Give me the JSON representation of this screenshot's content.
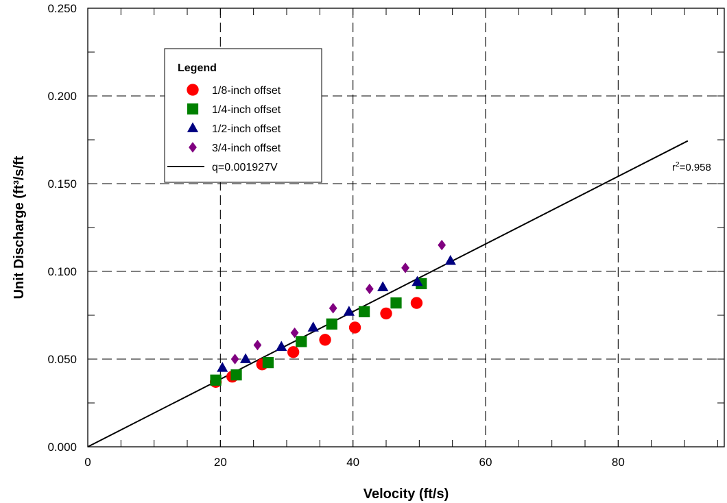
{
  "chart_data": {
    "type": "scatter",
    "xlabel": "Velocity (ft/s)",
    "ylabel": "Unit Discharge (ft³/s/ft",
    "xlim": [
      0,
      96
    ],
    "ylim": [
      0,
      0.25
    ],
    "x_ticks": [
      "0",
      "20",
      "40",
      "60",
      "80"
    ],
    "y_ticks": [
      "0.000",
      "0.050",
      "0.100",
      "0.150",
      "0.200",
      "0.250"
    ],
    "grid": true,
    "legend": {
      "title": "Legend",
      "placement": "top-left",
      "entries": [
        "1/8-inch offset",
        "1/4-inch offset",
        "1/2-inch offset",
        "3/4-inch offset",
        "q=0.001927V"
      ]
    },
    "series": [
      {
        "name": "1/8-inch offset",
        "marker": "circle",
        "color": "#ff0000",
        "points": [
          [
            19.3,
            0.037
          ],
          [
            21.8,
            0.04
          ],
          [
            26.3,
            0.047
          ],
          [
            31.0,
            0.054
          ],
          [
            35.8,
            0.061
          ],
          [
            40.3,
            0.068
          ],
          [
            45.0,
            0.076
          ],
          [
            49.6,
            0.082
          ]
        ]
      },
      {
        "name": "1/4-inch offset",
        "marker": "square",
        "color": "#008000",
        "points": [
          [
            19.3,
            0.038
          ],
          [
            22.4,
            0.041
          ],
          [
            27.2,
            0.048
          ],
          [
            32.2,
            0.06
          ],
          [
            36.8,
            0.07
          ],
          [
            41.7,
            0.077
          ],
          [
            46.5,
            0.082
          ],
          [
            50.3,
            0.093
          ]
        ]
      },
      {
        "name": "1/2-inch offset",
        "marker": "triangle",
        "color": "#000080",
        "points": [
          [
            20.3,
            0.045
          ],
          [
            23.8,
            0.05
          ],
          [
            29.2,
            0.057
          ],
          [
            34.0,
            0.068
          ],
          [
            39.4,
            0.077
          ],
          [
            44.5,
            0.091
          ],
          [
            49.7,
            0.094
          ],
          [
            54.7,
            0.106
          ]
        ]
      },
      {
        "name": "3/4-inch offset",
        "marker": "diamond",
        "color": "#800080",
        "points": [
          [
            22.2,
            0.05
          ],
          [
            25.6,
            0.058
          ],
          [
            31.2,
            0.065
          ],
          [
            37.0,
            0.079
          ],
          [
            42.5,
            0.09
          ],
          [
            47.9,
            0.102
          ],
          [
            53.4,
            0.115
          ]
        ]
      },
      {
        "name": "q=0.001927V",
        "type": "line",
        "color": "#000000",
        "slope": 0.001927,
        "x_range": [
          0,
          90.5
        ]
      }
    ],
    "annotation": {
      "prefix": "r",
      "sup": "2",
      "suffix": "=0.958"
    }
  }
}
